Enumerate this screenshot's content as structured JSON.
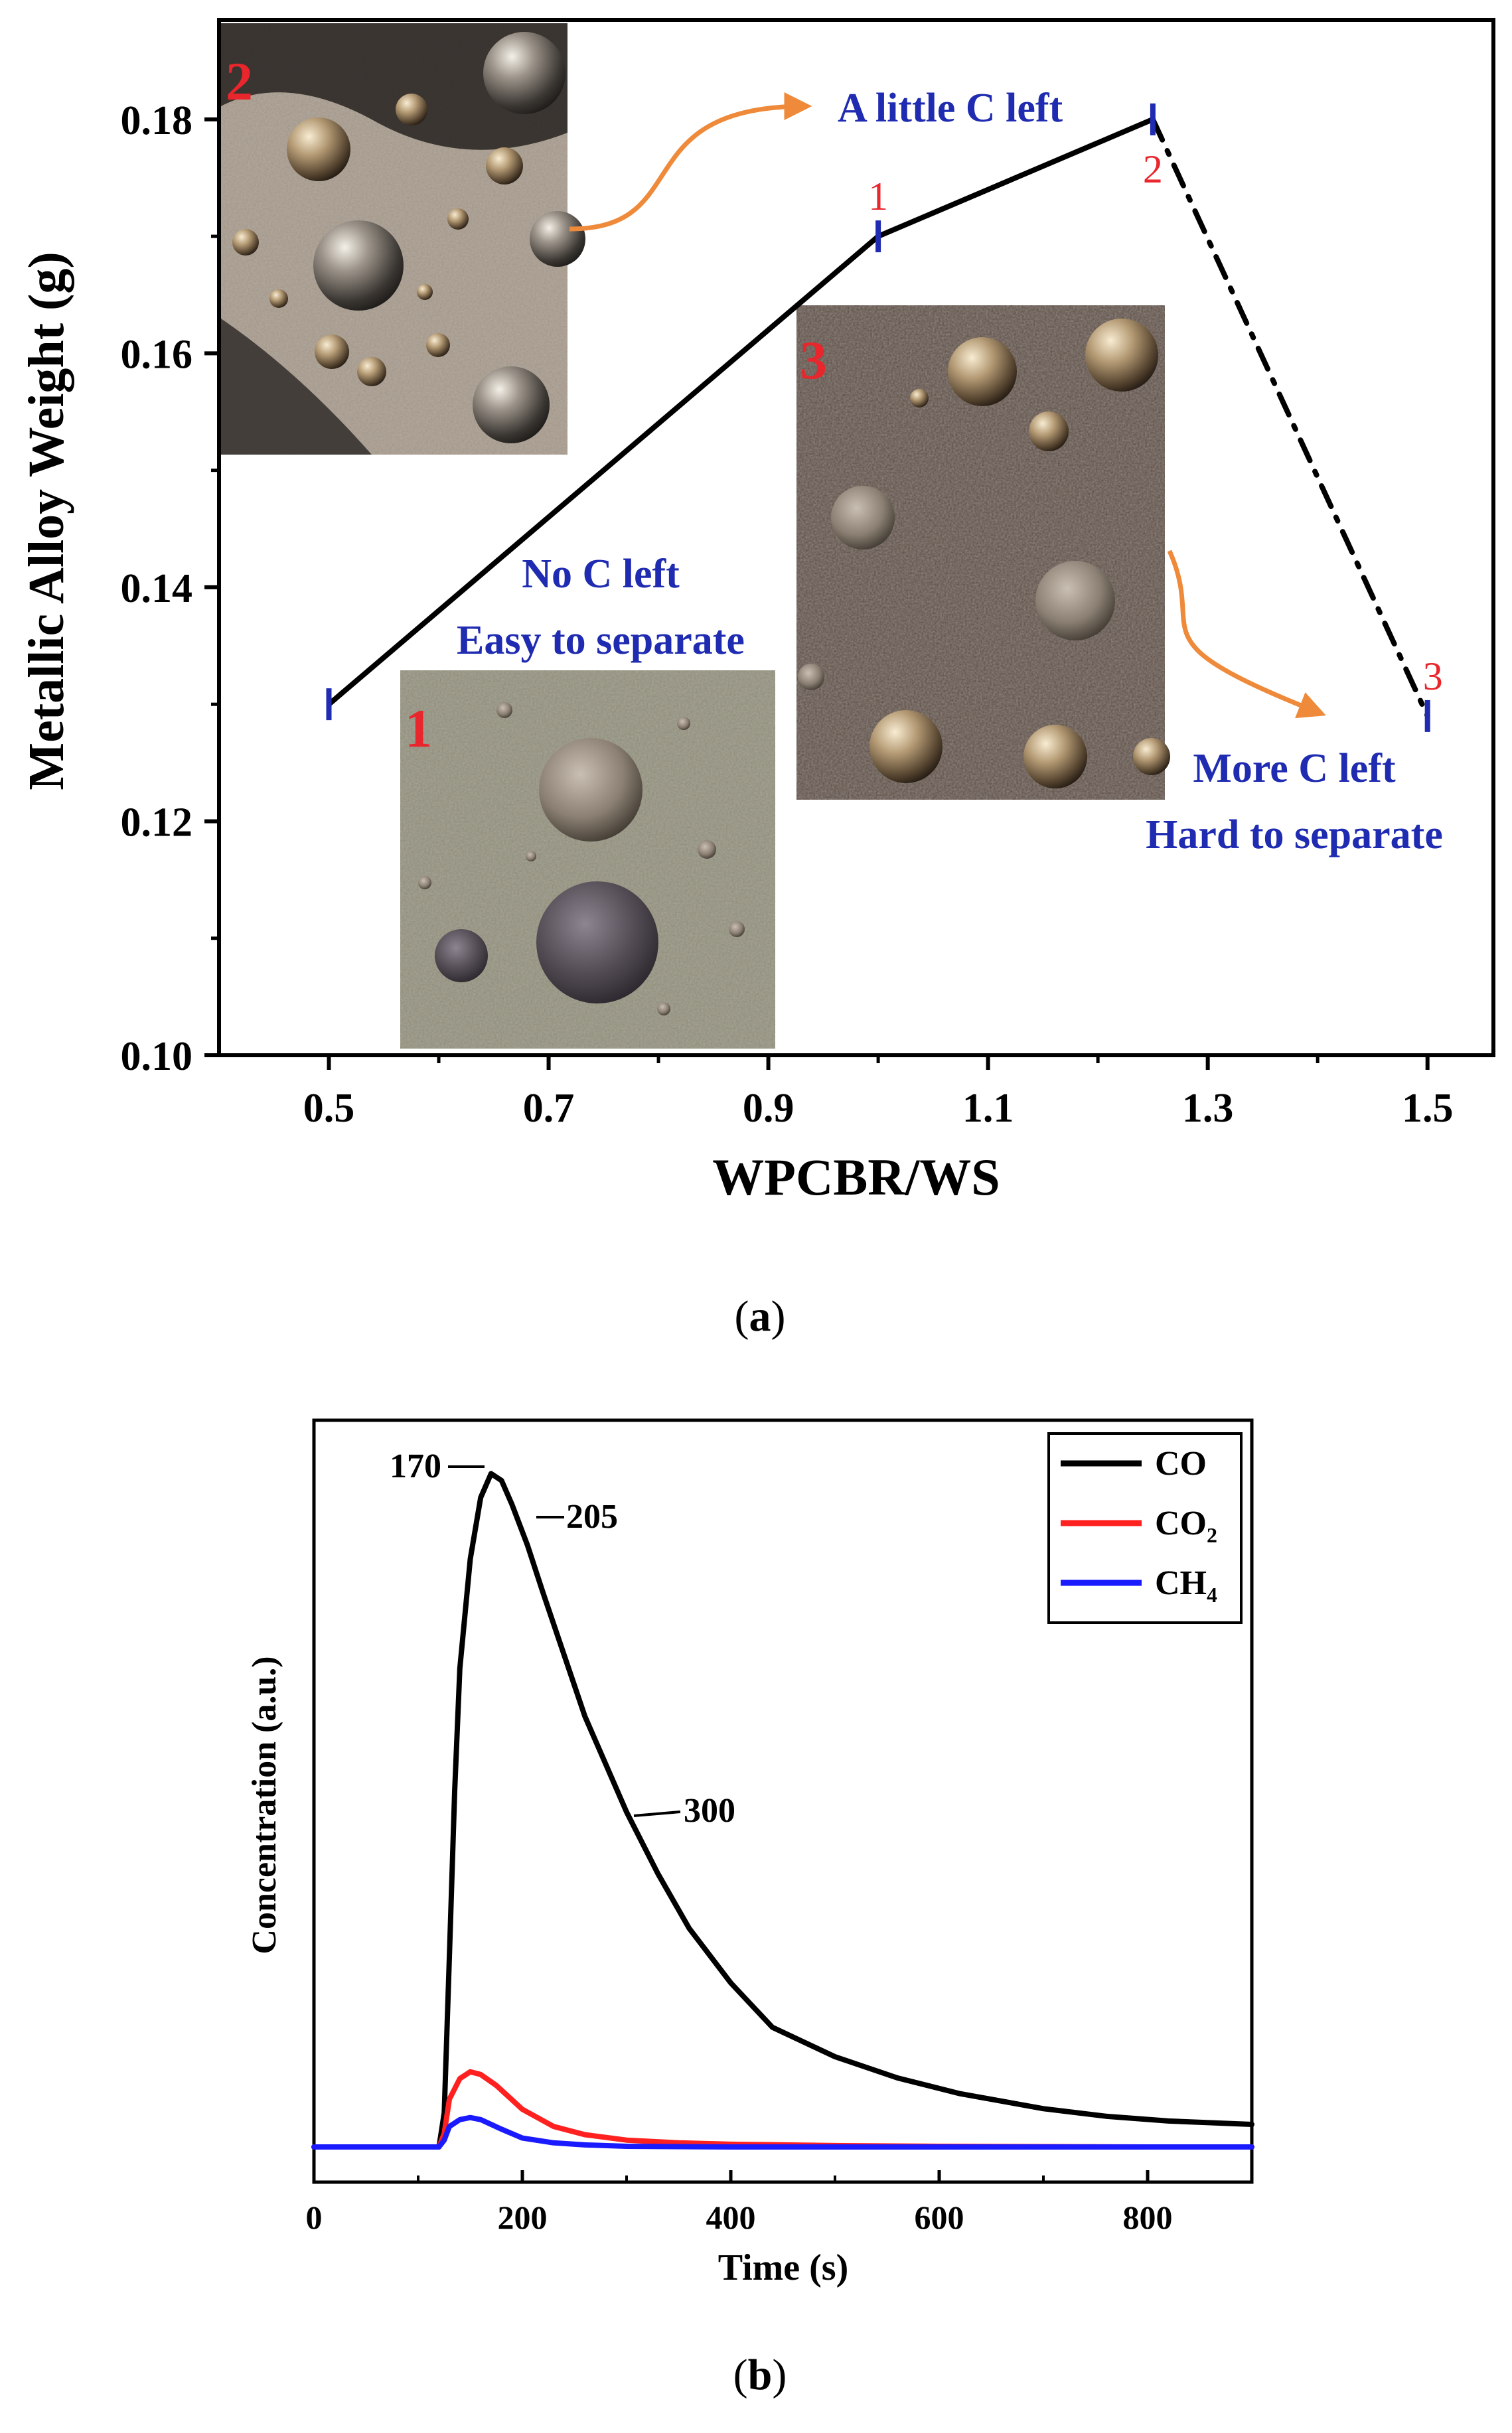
{
  "colors": {
    "axis": "#000000",
    "annotation_blue": "#1f2bb0",
    "annotation_red": "#e8262c",
    "arrow_orange": "#ee8a3a",
    "co": "#000000",
    "co2": "#ff2020",
    "ch4": "#1a1aff"
  },
  "chart_data": [
    {
      "panel": "a",
      "caption_letter": "a",
      "type": "line",
      "xlabel": "WPCBR/WS",
      "ylabel": "Metallic Alloy Weight (g)",
      "xlim": [
        0.4,
        1.56
      ],
      "ylim": [
        0.1,
        0.1885
      ],
      "xticks": [
        "0.5",
        "0.7",
        "0.9",
        "1.1",
        "1.3",
        "1.5"
      ],
      "yticks": [
        "0.10",
        "0.12",
        "0.14",
        "0.16",
        "0.18"
      ],
      "grid": false,
      "x": [
        0.5,
        1.0,
        1.25,
        1.5
      ],
      "y": [
        0.13,
        0.17,
        0.18,
        0.129
      ],
      "line_styles": [
        "solid",
        "solid",
        "dash-dot"
      ],
      "point_labels": [
        {
          "text": "1",
          "x": 1.0,
          "y": 0.17
        },
        {
          "text": "2",
          "x": 1.25,
          "y": 0.18
        },
        {
          "text": "3",
          "x": 1.5,
          "y": 0.129
        }
      ],
      "annotations": [
        {
          "lines": [
            "A little C left"
          ]
        },
        {
          "lines": [
            "No C left",
            "Easy to separate"
          ]
        },
        {
          "lines": [
            "More C left",
            "Hard to separate"
          ]
        }
      ],
      "inset_labels": [
        "2",
        "3",
        "1"
      ]
    },
    {
      "panel": "b",
      "caption_letter": "b",
      "type": "line",
      "xlabel": "Time (s)",
      "ylabel": "Concentration (a.u.)",
      "xlim": [
        0,
        900
      ],
      "ylim": [
        0,
        100
      ],
      "xticks": [
        0,
        200,
        400,
        600,
        800
      ],
      "grid": false,
      "legend_position": "top-right",
      "series": [
        {
          "name": "CO",
          "name_base": "CO",
          "name_sub": "",
          "x": [
            0,
            120,
            125,
            130,
            135,
            140,
            150,
            160,
            170,
            180,
            190,
            205,
            220,
            240,
            260,
            280,
            300,
            330,
            360,
            400,
            440,
            500,
            560,
            620,
            700,
            760,
            820,
            900
          ],
          "y": [
            0,
            0,
            5,
            28,
            52,
            70,
            86,
            95,
            98.5,
            97.5,
            94,
            88,
            81,
            72,
            63,
            56,
            49,
            40,
            32,
            24,
            17.5,
            13.2,
            10.1,
            7.8,
            5.6,
            4.5,
            3.8,
            3.3
          ]
        },
        {
          "name": "CO2",
          "name_base": "CO",
          "name_sub": "2",
          "x": [
            0,
            120,
            125,
            130,
            140,
            150,
            160,
            175,
            200,
            230,
            260,
            300,
            350,
            400,
            500,
            600,
            700,
            800,
            900
          ],
          "y": [
            0,
            0,
            2,
            7,
            10,
            11,
            10.6,
            9,
            5.5,
            3,
            1.8,
            1,
            0.6,
            0.4,
            0.2,
            0.1,
            0.05,
            0,
            0
          ]
        },
        {
          "name": "CH4",
          "name_base": "CH",
          "name_sub": "4",
          "x": [
            0,
            120,
            125,
            130,
            140,
            150,
            160,
            180,
            200,
            230,
            260,
            300,
            400,
            600,
            900
          ],
          "y": [
            0,
            0,
            1,
            3,
            4,
            4.3,
            4,
            2.6,
            1.3,
            0.6,
            0.3,
            0.1,
            0,
            0,
            0
          ]
        }
      ],
      "annotations": [
        {
          "text": "170",
          "x": 170
        },
        {
          "text": "205",
          "x": 205
        },
        {
          "text": "300",
          "x": 300
        }
      ]
    }
  ]
}
